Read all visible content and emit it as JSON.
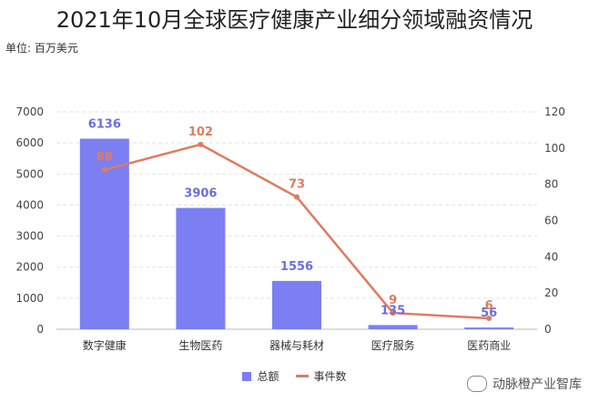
{
  "title": "2021年10月全球医疗健康产业细分领域融资情况",
  "unit_label": "单位: 百万美元",
  "watermark": "动脉橙产业智库",
  "colors": {
    "bar": "#7b7ff2",
    "line": "#e07b5f",
    "bar_label": "#6a6fe0",
    "line_label": "#e07b5f"
  },
  "chart_data": {
    "type": "bar",
    "categories": [
      "数字健康",
      "生物医药",
      "器械与耗材",
      "医疗服务",
      "医药商业"
    ],
    "series": [
      {
        "name": "总额",
        "type": "bar",
        "axis": "left",
        "values": [
          6136,
          3906,
          1556,
          135,
          56
        ]
      },
      {
        "name": "事件数",
        "type": "line",
        "axis": "right",
        "values": [
          88,
          102,
          73,
          9,
          6
        ]
      }
    ],
    "ylim_left": [
      0,
      7000
    ],
    "yticks_left": [
      0,
      1000,
      2000,
      3000,
      4000,
      5000,
      6000,
      7000
    ],
    "ylim_right": [
      0,
      120
    ],
    "yticks_right": [
      0,
      20,
      40,
      60,
      80,
      100,
      120
    ],
    "grid": true,
    "legend_position": "bottom-center"
  }
}
